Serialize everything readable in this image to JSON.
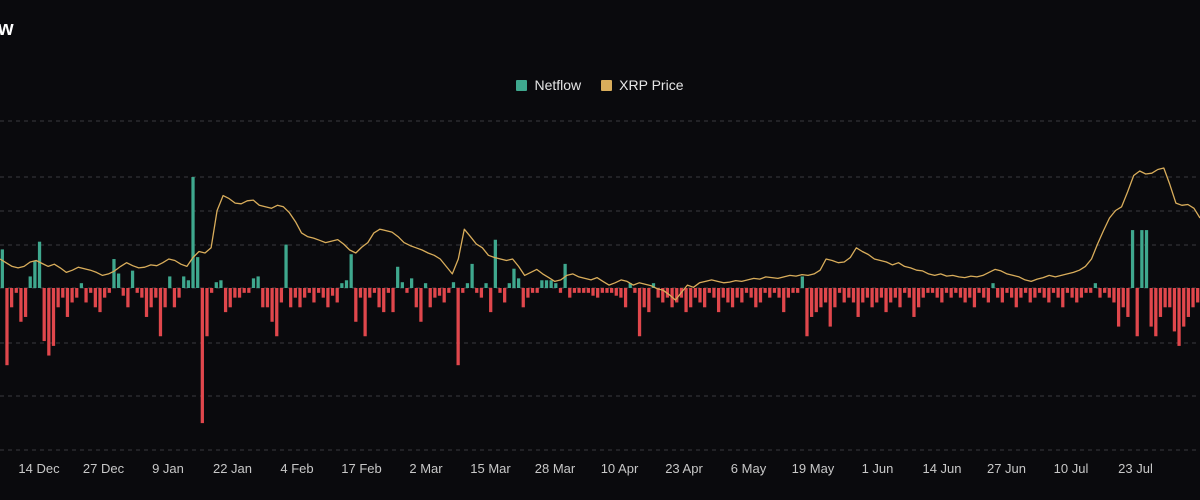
{
  "colors": {
    "background": "#0a0a0d",
    "positive": "#3fa88e",
    "negative": "#e0474c",
    "price": "#d9ad5b",
    "grid": "#3a3a40"
  },
  "title_fragment": "w",
  "chart_data": {
    "type": "bar",
    "title": "",
    "legend": {
      "placement": "top-center"
    },
    "grid": true,
    "xlabel": "",
    "ylabel": "",
    "x_tick_labels": [
      "14 Dec",
      "27 Dec",
      "9 Jan",
      "22 Jan",
      "4 Feb",
      "17 Feb",
      "2 Mar",
      "15 Mar",
      "28 Mar",
      "10 Apr",
      "23 Apr",
      "6 May",
      "19 May",
      "1 Jun",
      "14 Jun",
      "27 Jun",
      "10 Jul",
      "23 Jul"
    ],
    "y_range": [
      -160,
      200
    ],
    "series": [
      {
        "name": "Netflow",
        "type": "bar",
        "values": [
          40,
          -80,
          -20,
          -5,
          -35,
          -30,
          12,
          28,
          48,
          -55,
          -70,
          -60,
          -20,
          -10,
          -30,
          -15,
          -10,
          5,
          -15,
          -5,
          -20,
          -25,
          -10,
          -5,
          30,
          15,
          -8,
          -20,
          18,
          -5,
          -10,
          -30,
          -20,
          -10,
          -50,
          -20,
          12,
          -20,
          -10,
          12,
          8,
          115,
          32,
          -140,
          -50,
          -5,
          6,
          8,
          -25,
          -20,
          -10,
          -10,
          -5,
          -5,
          10,
          12,
          -20,
          -20,
          -35,
          -50,
          -15,
          45,
          -20,
          -10,
          -20,
          -10,
          -5,
          -15,
          -5,
          -10,
          -20,
          -8,
          -15,
          5,
          8,
          35,
          -35,
          -10,
          -50,
          -10,
          -5,
          -20,
          -25,
          -5,
          -25,
          22,
          6,
          -5,
          10,
          -20,
          -35,
          5,
          -20,
          -10,
          -8,
          -15,
          -5,
          6,
          -80,
          -5,
          5,
          25,
          -5,
          -10,
          5,
          -25,
          50,
          -5,
          -15,
          5,
          20,
          10,
          -20,
          -10,
          -5,
          -5,
          8,
          8,
          8,
          5,
          -5,
          25,
          -10,
          -5,
          -5,
          -5,
          -5,
          -8,
          -10,
          -5,
          -5,
          -5,
          -8,
          -10,
          -20,
          5,
          -5,
          -50,
          -20,
          -25,
          5,
          -10,
          -15,
          -10,
          -20,
          -15,
          -10,
          -25,
          -20,
          -10,
          -15,
          -20,
          -5,
          -10,
          -25,
          -10,
          -15,
          -20,
          -10,
          -15,
          -5,
          -10,
          -20,
          -15,
          -5,
          -10,
          -5,
          -10,
          -25,
          -10,
          -5,
          -5,
          12,
          -50,
          -30,
          -25,
          -20,
          -15,
          -40,
          -20,
          -5,
          -15,
          -10,
          -15,
          -30,
          -15,
          -10,
          -20,
          -15,
          -10,
          -25,
          -15,
          -10,
          -20,
          -5,
          -10,
          -30,
          -20,
          -10,
          -5,
          -5,
          -10,
          -15,
          -5,
          -10,
          -5,
          -10,
          -15,
          -10,
          -20,
          -5,
          -10,
          -15,
          5,
          -10,
          -15,
          -5,
          -10,
          -20,
          -10,
          -5,
          -15,
          -10,
          -5,
          -10,
          -15,
          -5,
          -10,
          -20,
          -5,
          -10,
          -15,
          -10,
          -5,
          -5,
          5,
          -10,
          -5,
          -10,
          -15,
          -40,
          -20,
          -30,
          60,
          -50,
          60,
          60,
          -40,
          -50,
          -30,
          -20,
          -20,
          -45,
          -60,
          -40,
          -30,
          -20,
          -15
        ]
      },
      {
        "name": "XRP Price",
        "type": "line",
        "values": [
          2.4,
          2.35,
          2.3,
          2.28,
          2.3,
          2.36,
          2.38,
          2.34,
          2.3,
          2.33,
          2.28,
          2.22,
          2.25,
          2.29,
          2.27,
          2.25,
          2.22,
          2.18,
          2.2,
          2.24,
          2.3,
          2.35,
          2.31,
          2.28,
          2.29,
          2.32,
          2.31,
          2.35,
          2.4,
          2.38,
          2.33,
          2.3,
          2.42,
          2.5,
          2.48,
          2.55,
          3.05,
          3.25,
          3.21,
          3.15,
          3.14,
          3.18,
          3.19,
          3.12,
          3.1,
          3.08,
          3.12,
          3.1,
          3.02,
          2.9,
          2.75,
          2.7,
          2.68,
          2.65,
          2.62,
          2.64,
          2.66,
          2.6,
          2.52,
          2.48,
          2.56,
          2.62,
          2.75,
          2.8,
          2.78,
          2.76,
          2.7,
          2.62,
          2.58,
          2.55,
          2.52,
          2.48,
          2.45,
          2.4,
          2.3,
          2.2,
          2.4,
          2.8,
          2.7,
          2.6,
          2.55,
          2.45,
          2.42,
          2.4,
          2.38,
          2.4,
          2.3,
          2.18,
          2.22,
          2.26,
          2.2,
          2.15,
          2.1,
          2.12,
          2.18,
          2.2,
          2.16,
          2.14,
          2.12,
          2.15,
          2.1,
          2.05,
          2.08,
          2.12,
          2.1,
          2.05,
          2.08,
          2.06,
          2.04,
          2.0,
          1.98,
          1.92,
          1.85,
          1.95,
          2.05,
          2.02,
          2.08,
          2.1,
          2.12,
          2.1,
          2.08,
          2.09,
          2.11,
          2.1,
          2.12,
          2.14,
          2.13,
          2.16,
          2.15,
          2.14,
          2.16,
          2.18,
          2.17,
          2.19,
          2.18,
          2.2,
          2.25,
          2.4,
          2.38,
          2.35,
          2.36,
          2.42,
          2.55,
          2.5,
          2.46,
          2.4,
          2.38,
          2.36,
          2.32,
          2.35,
          2.3,
          2.28,
          2.25,
          2.24,
          2.2,
          2.18,
          2.2,
          2.17,
          2.18,
          2.16,
          2.15,
          2.17,
          2.16,
          2.18,
          2.22,
          2.26,
          2.24,
          2.2,
          2.18,
          2.16,
          2.12,
          2.1,
          2.13,
          2.15,
          2.18,
          2.16,
          2.18,
          2.2,
          2.22,
          2.25,
          2.3,
          2.4,
          2.6,
          2.78,
          2.95,
          3.05,
          3.1,
          3.3,
          3.52,
          3.58,
          3.54,
          3.55,
          3.6,
          3.62,
          3.4,
          3.15,
          3.12,
          3.13,
          3.08,
          2.95
        ]
      }
    ]
  }
}
